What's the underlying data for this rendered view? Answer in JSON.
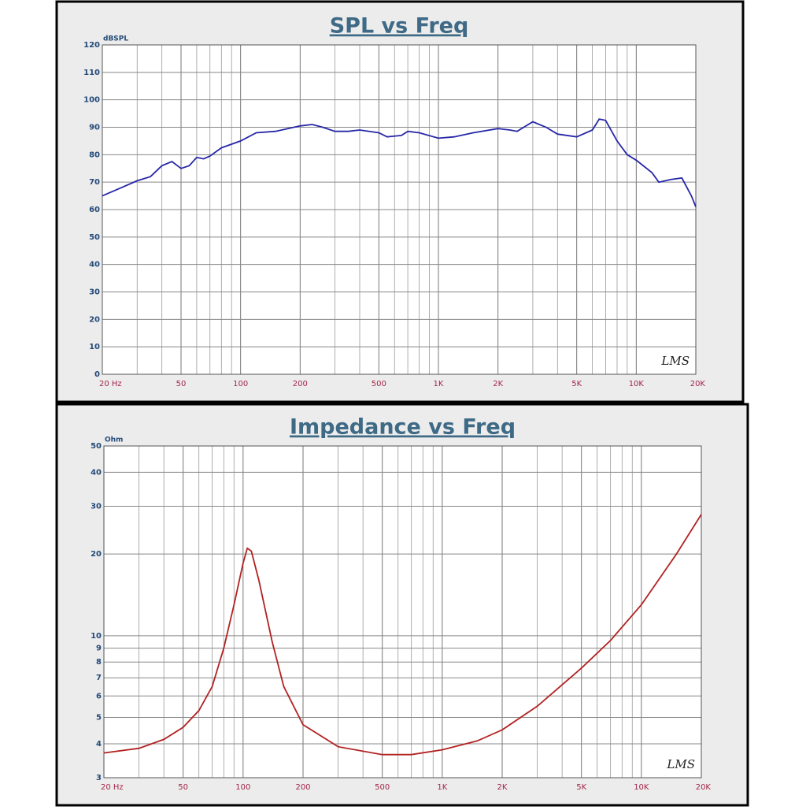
{
  "chart_data": [
    {
      "type": "line",
      "title": "SPL vs Freq",
      "y_label": "dBSPL",
      "watermark": "LMS",
      "x_scale": "log",
      "y_scale": "linear",
      "color": "#2727a8",
      "xlim": [
        20,
        20000
      ],
      "ylim": [
        0,
        120
      ],
      "xticks": [
        {
          "value": 20,
          "label": "20 Hz"
        },
        50,
        100,
        200,
        500,
        {
          "value": 1000,
          "label": "1K"
        },
        {
          "value": 2000,
          "label": "2K"
        },
        {
          "value": 5000,
          "label": "5K"
        },
        {
          "value": 10000,
          "label": "10K"
        },
        {
          "value": 20000,
          "label": "20K"
        }
      ],
      "xgrid": [
        30,
        40,
        60,
        70,
        80,
        90,
        300,
        400,
        600,
        700,
        800,
        900,
        3000,
        4000,
        6000,
        7000,
        8000,
        9000
      ],
      "yticks": [
        0,
        10,
        20,
        30,
        40,
        50,
        60,
        70,
        80,
        90,
        100,
        110,
        120
      ],
      "x": [
        20,
        25,
        30,
        35,
        40,
        45,
        50,
        55,
        60,
        65,
        70,
        80,
        100,
        120,
        150,
        200,
        230,
        260,
        300,
        350,
        400,
        500,
        550,
        650,
        700,
        800,
        1000,
        1200,
        1500,
        2000,
        2300,
        2500,
        3000,
        3500,
        4000,
        5000,
        6000,
        6500,
        7000,
        8000,
        9000,
        10000,
        12000,
        13000,
        15000,
        17000,
        19000,
        20000
      ],
      "values": [
        65,
        68,
        70.5,
        72,
        76,
        77.5,
        75,
        76,
        79,
        78.5,
        79.5,
        82.5,
        85,
        88,
        88.5,
        90.5,
        91,
        90,
        88.5,
        88.5,
        89,
        88,
        86.5,
        87,
        88.5,
        88,
        86,
        86.5,
        88,
        89.5,
        89,
        88.5,
        92,
        90,
        87.5,
        86.5,
        89,
        93,
        92.5,
        85,
        80,
        78,
        73.5,
        70,
        71,
        71.5,
        65,
        61
      ]
    },
    {
      "type": "line",
      "title": "Impedance vs Freq",
      "y_label": "Ohm",
      "watermark": "LMS",
      "x_scale": "log",
      "y_scale": "log",
      "color": "#b22222",
      "xlim": [
        20,
        20000
      ],
      "ylim": [
        3,
        50
      ],
      "xticks": [
        {
          "value": 20,
          "label": "20 Hz"
        },
        50,
        100,
        200,
        500,
        {
          "value": 1000,
          "label": "1K"
        },
        {
          "value": 2000,
          "label": "2K"
        },
        {
          "value": 5000,
          "label": "5K"
        },
        {
          "value": 10000,
          "label": "10K"
        },
        {
          "value": 20000,
          "label": "20K"
        }
      ],
      "xgrid": [
        30,
        40,
        60,
        70,
        80,
        90,
        300,
        400,
        600,
        700,
        800,
        900,
        3000,
        4000,
        6000,
        7000,
        8000,
        9000
      ],
      "yticks": [
        3,
        4,
        5,
        6,
        7,
        8,
        9,
        10,
        20,
        30,
        40,
        50
      ],
      "x": [
        20,
        30,
        40,
        50,
        60,
        70,
        80,
        90,
        100,
        105,
        110,
        120,
        140,
        160,
        200,
        300,
        500,
        700,
        1000,
        1500,
        2000,
        3000,
        5000,
        7000,
        10000,
        15000,
        20000
      ],
      "values": [
        3.7,
        3.85,
        4.15,
        4.6,
        5.3,
        6.5,
        9,
        13,
        18.5,
        21,
        20.5,
        16,
        9.5,
        6.5,
        4.7,
        3.9,
        3.65,
        3.65,
        3.8,
        4.1,
        4.5,
        5.5,
        7.6,
        9.6,
        13,
        20,
        28
      ]
    }
  ]
}
